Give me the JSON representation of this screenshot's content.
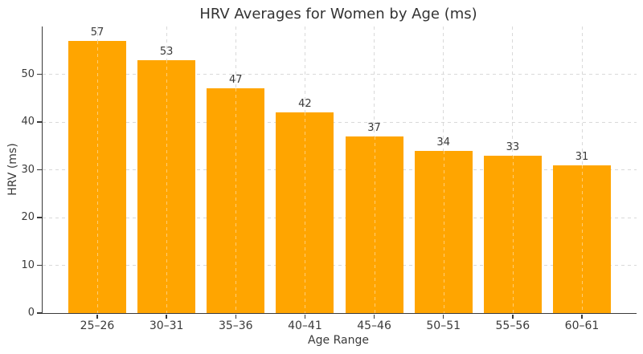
{
  "chart_data": {
    "type": "bar",
    "title": "HRV Averages for Women by Age (ms)",
    "xlabel": "Age Range",
    "ylabel": "HRV (ms)",
    "categories": [
      "25–26",
      "30–31",
      "35–36",
      "40–41",
      "45–46",
      "50–51",
      "55–56",
      "60–61"
    ],
    "values": [
      57,
      53,
      47,
      42,
      37,
      34,
      33,
      31
    ],
    "ylim": [
      0,
      60
    ],
    "yticks": [
      0,
      10,
      20,
      30,
      40,
      50
    ],
    "bar_color": "#FFA500",
    "grid_color": "#d9d9d9",
    "axis_color": "#3a3a3a",
    "grid": "dashed, both axes, behind bars",
    "legend": "none",
    "value_labels": "above each bar"
  }
}
